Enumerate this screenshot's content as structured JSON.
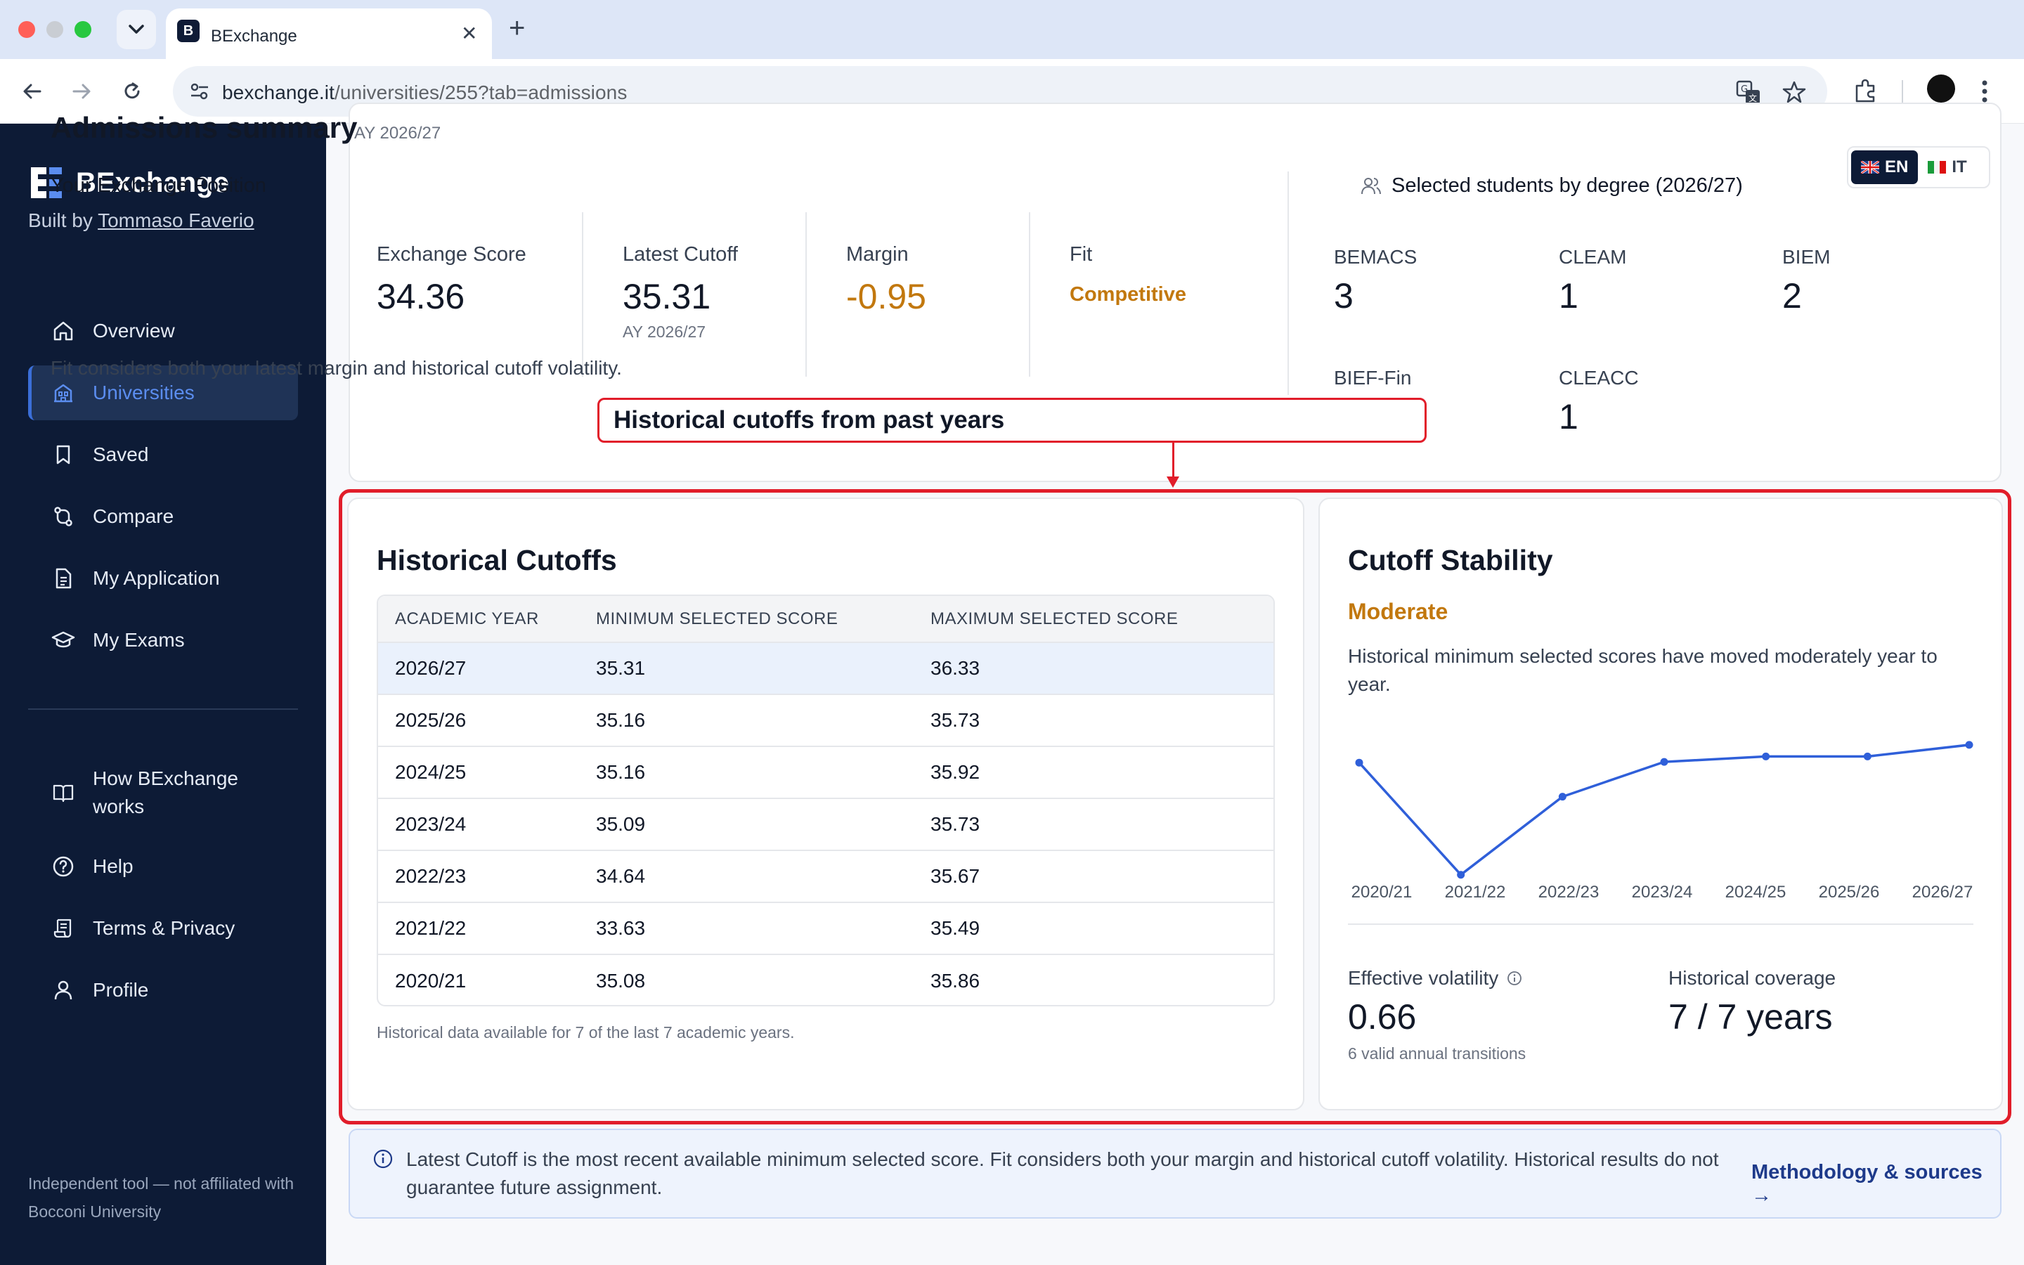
{
  "browser": {
    "tab_title": "BExchange",
    "url_host": "bexchange.it",
    "url_path": "/universities/255?tab=admissions",
    "favicon_text": "B"
  },
  "sidebar": {
    "brand": "BExchange",
    "built_by_prefix": "Built by ",
    "built_by_name": "Tommaso Faverio",
    "items": [
      {
        "label": "Overview",
        "icon": "home-icon"
      },
      {
        "label": "Universities",
        "icon": "building-icon"
      },
      {
        "label": "Saved",
        "icon": "bookmark-icon"
      },
      {
        "label": "Compare",
        "icon": "compare-icon"
      },
      {
        "label": "My Application",
        "icon": "document-icon"
      },
      {
        "label": "My Exams",
        "icon": "graduation-cap-icon"
      }
    ],
    "secondary_items": [
      {
        "label": "How BExchange works",
        "icon": "book-icon"
      },
      {
        "label": "Help",
        "icon": "help-icon"
      },
      {
        "label": "Terms & Privacy",
        "icon": "scroll-icon"
      },
      {
        "label": "Profile",
        "icon": "user-icon"
      }
    ],
    "disclaimer": "Independent tool — not affiliated with Bocconi University"
  },
  "summary": {
    "title": "Admissions summary",
    "ay": "AY 2026/27",
    "position_title": "Your Exchange Position",
    "metrics": {
      "exchange_score_label": "Exchange Score",
      "exchange_score": "34.36",
      "latest_cutoff_label": "Latest Cutoff",
      "latest_cutoff": "35.31",
      "latest_cutoff_ay": "AY 2026/27",
      "margin_label": "Margin",
      "margin": "-0.95",
      "fit_label": "Fit",
      "fit": "Competitive"
    },
    "fit_note": "Fit considers both your latest margin and historical cutoff volatility.",
    "degrees_title": "Selected students by degree (2026/27)",
    "degrees": [
      {
        "name": "BEMACS",
        "count": "3"
      },
      {
        "name": "CLEAM",
        "count": "1"
      },
      {
        "name": "BIEM",
        "count": "2"
      },
      {
        "name": "BIEF-Fin",
        "count": ""
      },
      {
        "name": "CLEACC",
        "count": "1"
      }
    ]
  },
  "language": {
    "en": "EN",
    "it": "IT",
    "selected": "EN"
  },
  "annotation": {
    "callout": "Historical cutoffs from past years"
  },
  "historical": {
    "title": "Historical Cutoffs",
    "columns": [
      "ACADEMIC YEAR",
      "MINIMUM SELECTED SCORE",
      "MAXIMUM SELECTED SCORE"
    ],
    "rows": [
      [
        "2026/27",
        "35.31",
        "36.33"
      ],
      [
        "2025/26",
        "35.16",
        "35.73"
      ],
      [
        "2024/25",
        "35.16",
        "35.92"
      ],
      [
        "2023/24",
        "35.09",
        "35.73"
      ],
      [
        "2022/23",
        "34.64",
        "35.67"
      ],
      [
        "2021/22",
        "33.63",
        "35.49"
      ],
      [
        "2020/21",
        "35.08",
        "35.86"
      ]
    ],
    "note": "Historical data available for 7 of the last 7 academic years."
  },
  "stability": {
    "title": "Cutoff Stability",
    "level": "Moderate",
    "description": "Historical minimum selected scores have moved moderately year to year.",
    "effective_volatility_label": "Effective volatility",
    "effective_volatility": "0.66",
    "transitions": "6 valid annual transitions",
    "coverage_label": "Historical coverage",
    "coverage": "7 / 7 years"
  },
  "chart_data": {
    "type": "line",
    "x": [
      "2020/21",
      "2021/22",
      "2022/23",
      "2023/24",
      "2024/25",
      "2025/26",
      "2026/27"
    ],
    "series": [
      {
        "values": [
          35.08,
          33.63,
          34.64,
          35.09,
          35.16,
          35.16,
          35.31
        ]
      }
    ],
    "ylim": [
      33.4,
      35.4
    ],
    "grid": false,
    "color": "#2f5fd9"
  },
  "banner": {
    "text": "Latest Cutoff is the most recent available minimum selected score. Fit considers both your margin and historical cutoff volatility. Historical results do not guarantee future assignment.",
    "link": "Methodology & sources →"
  },
  "colors": {
    "accent_orange": "#c2780e",
    "sidebar_bg": "#0d1b36",
    "highlight_red": "#e11d2a"
  }
}
